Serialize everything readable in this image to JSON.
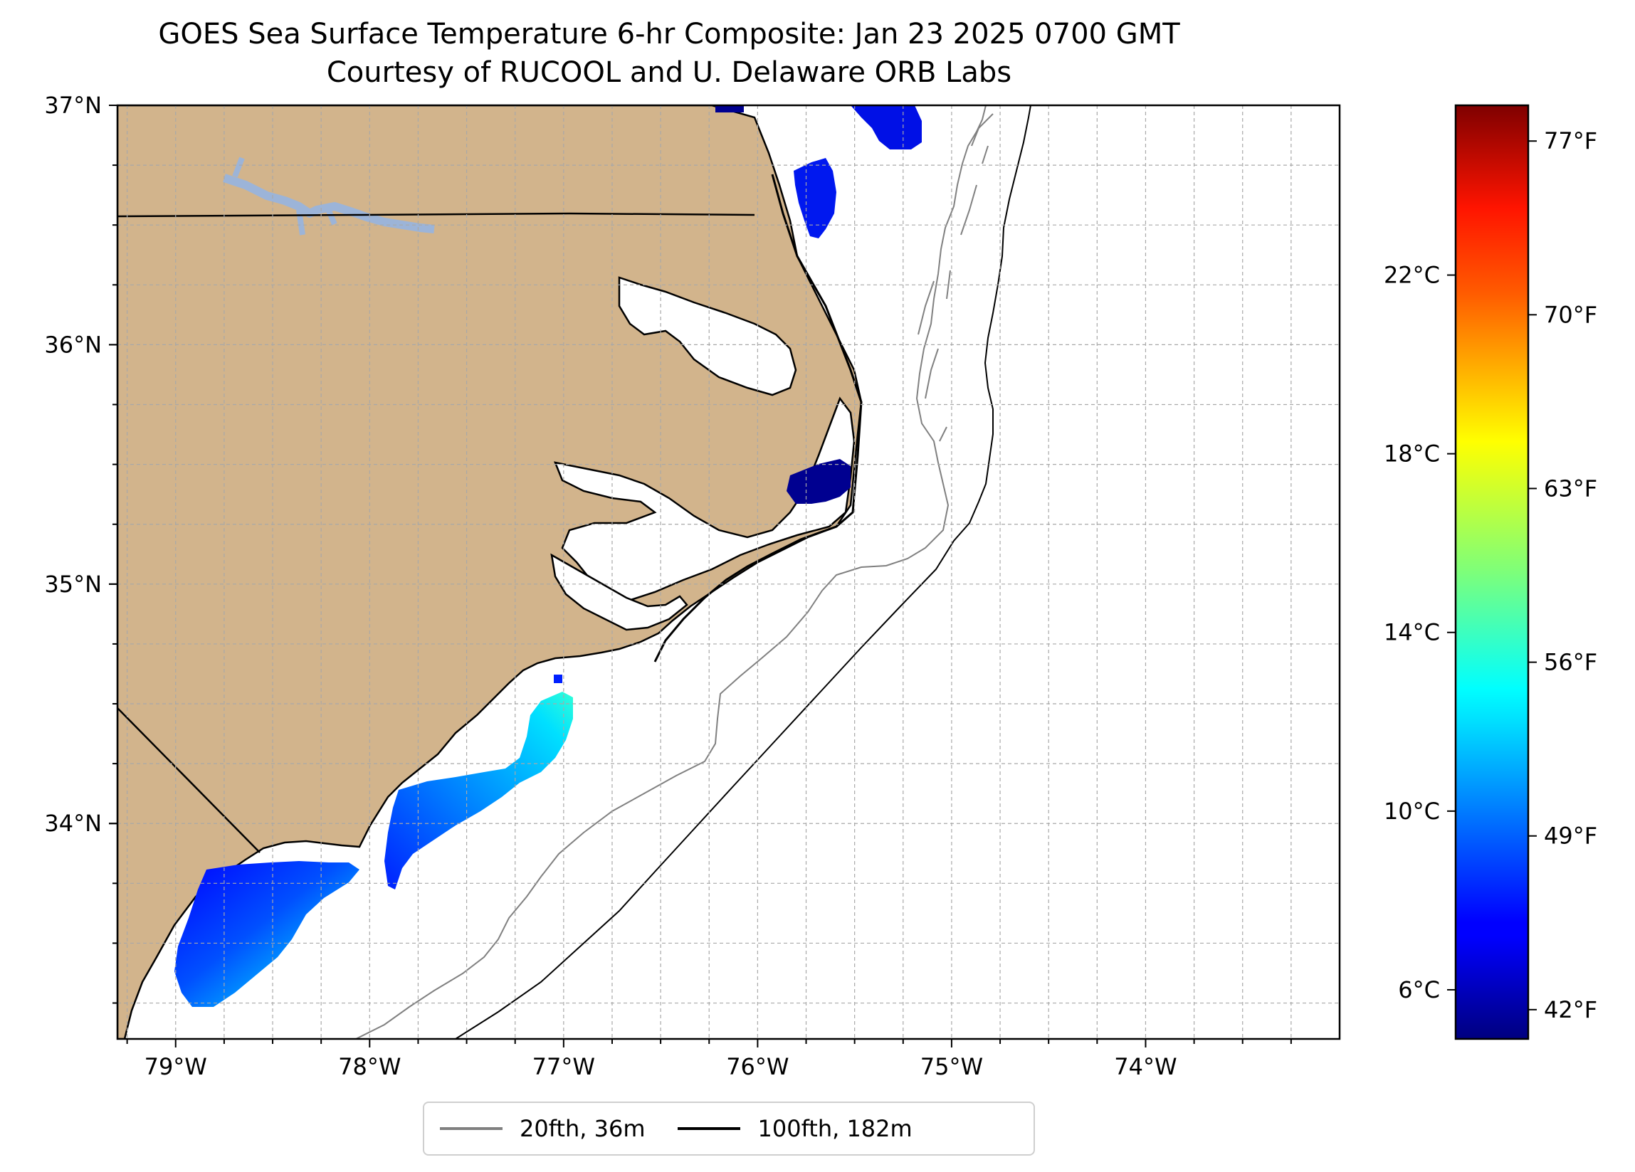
{
  "title": "GOES Sea Surface Temperature 6-hr Composite: Jan 23 2025 0700 GMT",
  "subtitle": "Courtesy of RUCOOL and U. Delaware ORB Labs",
  "map": {
    "lon_range": [
      -79.3,
      -73.0
    ],
    "lat_range": [
      33.1,
      37.0
    ],
    "land_color": "#d2b48c",
    "lake_color": "#9cb4d8",
    "grid": true,
    "lon_ticks": [
      {
        "value": -79,
        "label": "79°W"
      },
      {
        "value": -78,
        "label": "78°W"
      },
      {
        "value": -77,
        "label": "77°W"
      },
      {
        "value": -76,
        "label": "76°W"
      },
      {
        "value": -75,
        "label": "75°W"
      },
      {
        "value": -74,
        "label": "74°W"
      }
    ],
    "lat_ticks": [
      {
        "value": 37,
        "label": "37°N"
      },
      {
        "value": 36,
        "label": "36°N"
      },
      {
        "value": 35,
        "label": "35°N"
      },
      {
        "value": 34,
        "label": "34°N"
      }
    ]
  },
  "colorbar": {
    "colormap": "jet",
    "range_c": [
      4.9,
      25.8
    ],
    "celsius_ticks": [
      {
        "value": 6,
        "label": "6°C"
      },
      {
        "value": 10,
        "label": "10°C"
      },
      {
        "value": 14,
        "label": "14°C"
      },
      {
        "value": 18,
        "label": "18°C"
      },
      {
        "value": 22,
        "label": "22°C"
      }
    ],
    "fahrenheit_ticks": [
      {
        "value": 42,
        "label": "42°F"
      },
      {
        "value": 49,
        "label": "49°F"
      },
      {
        "value": 56,
        "label": "56°F"
      },
      {
        "value": 63,
        "label": "63°F"
      },
      {
        "value": 70,
        "label": "70°F"
      },
      {
        "value": 77,
        "label": "77°F"
      }
    ]
  },
  "legend": {
    "items": [
      {
        "label": "20fth, 36m",
        "color": "#808080"
      },
      {
        "label": "100fth, 182m",
        "color": "#000000"
      }
    ]
  }
}
